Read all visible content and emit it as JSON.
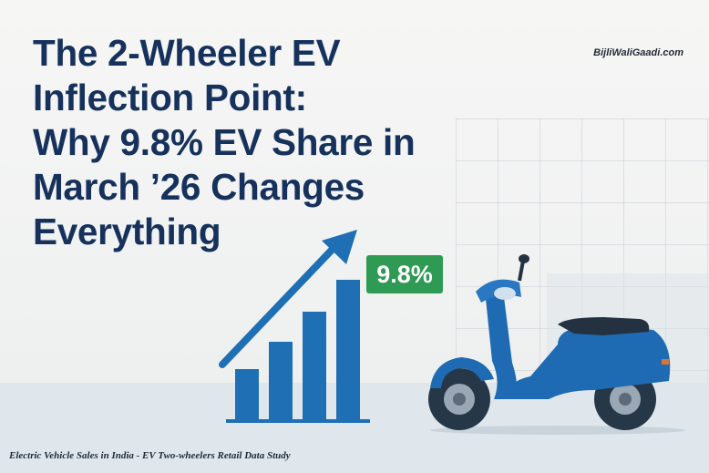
{
  "title": {
    "lines": [
      "The 2-Wheeler EV",
      "Inflection Point:",
      "Why 9.8% EV Share in",
      "March ’26 Changes",
      "Everything"
    ]
  },
  "brand": "BijliWaliGaadi.com",
  "badge": "9.8%",
  "footer": "Electric Vehicle Sales in India - EV Two-wheelers Retail Data Study",
  "colors": {
    "title": "#16325c",
    "accent_blue": "#1f6fb5",
    "badge_green": "#2e9a53",
    "scooter_blue": "#1e6bb3"
  },
  "icons": [
    "growth-bar-chart-icon",
    "trend-arrow-icon",
    "electric-scooter-icon"
  ]
}
